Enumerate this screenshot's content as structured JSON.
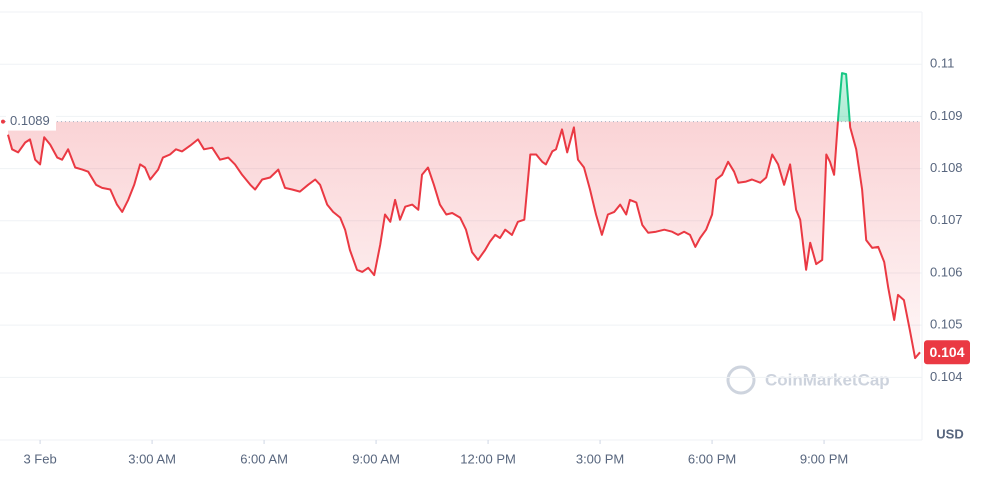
{
  "chart_data": {
    "type": "line",
    "x": [
      -0.86,
      -0.75,
      -0.59,
      -0.4,
      -0.27,
      -0.13,
      0,
      0.11,
      0.27,
      0.46,
      0.59,
      0.75,
      0.94,
      1.13,
      1.29,
      1.5,
      1.66,
      1.88,
      2.06,
      2.2,
      2.36,
      2.52,
      2.68,
      2.81,
      2.95,
      3.16,
      3.29,
      3.48,
      3.64,
      3.8,
      4.02,
      4.23,
      4.39,
      4.61,
      4.82,
      5.04,
      5.22,
      5.41,
      5.63,
      5.76,
      5.95,
      6.16,
      6.38,
      6.56,
      6.75,
      6.96,
      7.18,
      7.37,
      7.5,
      7.69,
      7.85,
      8.04,
      8.17,
      8.3,
      8.49,
      8.63,
      8.79,
      8.95,
      9.11,
      9.24,
      9.38,
      9.51,
      9.64,
      9.78,
      9.97,
      10.13,
      10.23,
      10.39,
      10.55,
      10.71,
      10.88,
      11.04,
      11.25,
      11.41,
      11.57,
      11.73,
      11.92,
      12.05,
      12.19,
      12.32,
      12.46,
      12.64,
      12.8,
      12.97,
      13.13,
      13.29,
      13.45,
      13.55,
      13.72,
      13.82,
      13.98,
      14.12,
      14.3,
      14.41,
      14.57,
      14.73,
      14.89,
      15.05,
      15.21,
      15.38,
      15.54,
      15.7,
      15.8,
      15.97,
      16.13,
      16.29,
      16.5,
      16.72,
      16.93,
      17.09,
      17.25,
      17.41,
      17.55,
      17.68,
      17.84,
      18.0,
      18.11,
      18.27,
      18.43,
      18.59,
      18.7,
      18.91,
      19.07,
      19.29,
      19.45,
      19.61,
      19.77,
      19.93,
      20.09,
      20.25,
      20.36,
      20.52,
      20.63,
      20.79,
      20.95,
      21.06,
      21.16,
      21.27,
      21.38,
      21.48,
      21.59,
      21.7,
      21.86,
      22.02,
      22.13,
      22.29,
      22.45,
      22.61,
      22.72,
      22.88,
      22.98,
      23.14,
      23.3,
      23.44,
      23.57
    ],
    "values": [
      0.10865,
      0.10837,
      0.10831,
      0.1085,
      0.10856,
      0.10817,
      0.10808,
      0.1086,
      0.10846,
      0.10821,
      0.10817,
      0.10837,
      0.10802,
      0.10798,
      0.10794,
      0.10769,
      0.10763,
      0.1076,
      0.10731,
      0.10717,
      0.1074,
      0.10769,
      0.10808,
      0.10802,
      0.10779,
      0.10798,
      0.10821,
      0.10827,
      0.10837,
      0.10833,
      0.10844,
      0.10856,
      0.10837,
      0.1084,
      0.10817,
      0.10821,
      0.10808,
      0.10788,
      0.10769,
      0.1076,
      0.10779,
      0.10783,
      0.10798,
      0.10763,
      0.1076,
      0.10756,
      0.10769,
      0.10779,
      0.10769,
      0.10731,
      0.10717,
      0.10706,
      0.10683,
      0.10644,
      0.10606,
      0.10602,
      0.1061,
      0.10596,
      0.10654,
      0.10712,
      0.10698,
      0.1074,
      0.10702,
      0.10727,
      0.10731,
      0.10721,
      0.10788,
      0.10802,
      0.10769,
      0.10731,
      0.10712,
      0.10715,
      0.10706,
      0.10683,
      0.1064,
      0.10625,
      0.10644,
      0.1066,
      0.10673,
      0.10667,
      0.10683,
      0.10673,
      0.10698,
      0.10702,
      0.10827,
      0.10827,
      0.10813,
      0.10808,
      0.10833,
      0.10837,
      0.10875,
      0.10831,
      0.10879,
      0.10817,
      0.10802,
      0.1076,
      0.10712,
      0.10673,
      0.10712,
      0.10717,
      0.10731,
      0.10712,
      0.1074,
      0.10735,
      0.10692,
      0.10677,
      0.10679,
      0.10683,
      0.10679,
      0.10673,
      0.10679,
      0.10673,
      0.1065,
      0.10667,
      0.10683,
      0.10712,
      0.10779,
      0.10788,
      0.10813,
      0.10794,
      0.10773,
      0.10775,
      0.10779,
      0.10773,
      0.10783,
      0.10827,
      0.10808,
      0.10769,
      0.10808,
      0.10721,
      0.10702,
      0.10606,
      0.10658,
      0.10617,
      0.10625,
      0.10827,
      0.10813,
      0.10788,
      0.10898,
      0.10983,
      0.10981,
      0.10879,
      0.10837,
      0.1076,
      0.10663,
      0.10648,
      0.1065,
      0.10621,
      0.10571,
      0.1051,
      0.10558,
      0.10548,
      0.1049,
      0.10437,
      0.10448
    ],
    "baseline": 0.1089,
    "current_price": {
      "value": 0.10448,
      "label": "0.104"
    },
    "color_up": "#16c784",
    "color_down": "#ea3943",
    "xlim": [
      -0.94,
      23.57
    ],
    "xticks": [
      {
        "value": 0,
        "label": "3 Feb"
      },
      {
        "value": 3,
        "label": "3:00 AM"
      },
      {
        "value": 6,
        "label": "6:00 AM"
      },
      {
        "value": 9,
        "label": "9:00 AM"
      },
      {
        "value": 12,
        "label": "12:00 PM"
      },
      {
        "value": 15,
        "label": "3:00 PM"
      },
      {
        "value": 18,
        "label": "6:00 PM"
      },
      {
        "value": 21,
        "label": "9:00 PM"
      }
    ],
    "ylim": [
      0.1028,
      0.111
    ],
    "yticks": [
      0.104,
      0.105,
      0.106,
      0.107,
      0.108,
      0.109,
      0.11
    ],
    "grid": true,
    "y_axis_label": "USD",
    "watermark": "CoinMarketCap"
  }
}
